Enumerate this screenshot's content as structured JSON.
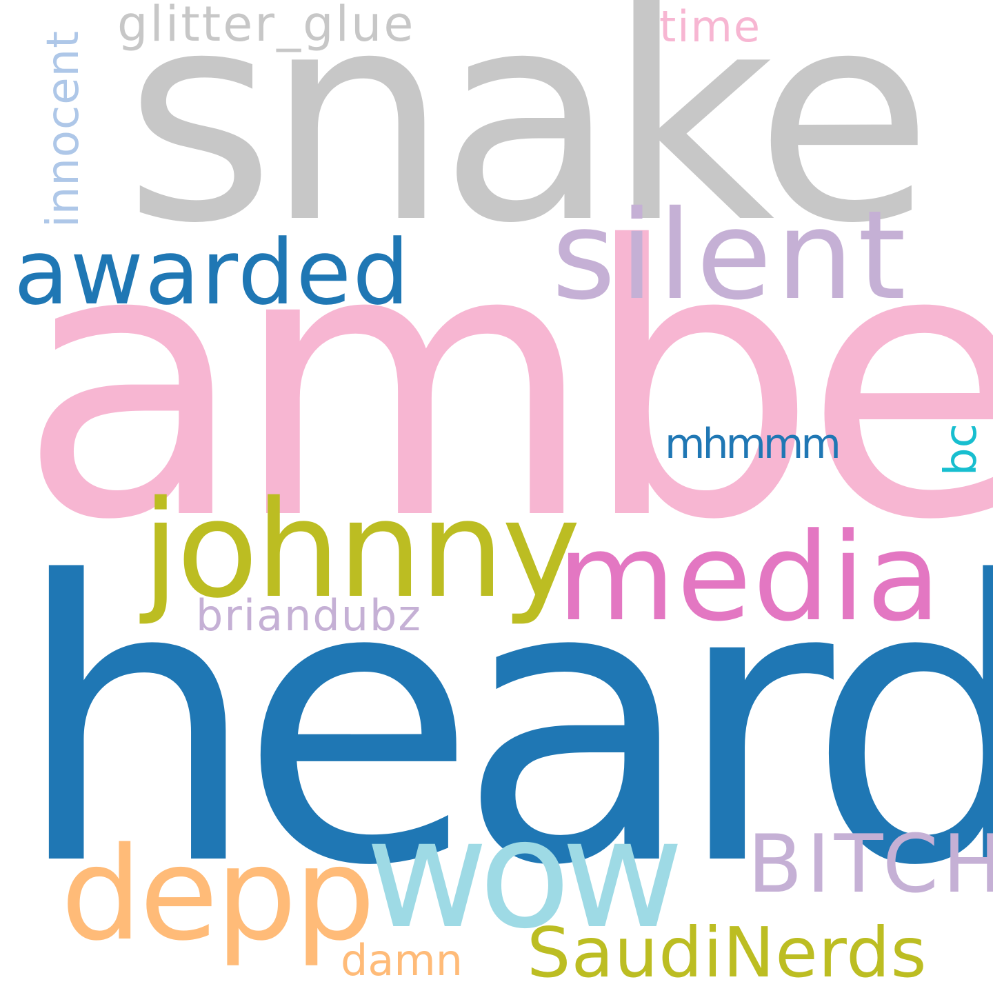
{
  "words": [
    {
      "text": "snake",
      "color": "#c7c7c7"
    },
    {
      "text": "amber",
      "color": "#f7b6d2"
    },
    {
      "text": "heard",
      "color": "#1f77b4"
    },
    {
      "text": "silent",
      "color": "#c5b0d5"
    },
    {
      "text": "awarded",
      "color": "#1f77b4"
    },
    {
      "text": "johnny",
      "color": "#bcbd22"
    },
    {
      "text": "media",
      "color": "#e377c2"
    },
    {
      "text": "wow",
      "color": "#9edae5"
    },
    {
      "text": "depp",
      "color": "#ffbb78"
    },
    {
      "text": "BITCH",
      "color": "#c5b0d5"
    },
    {
      "text": "SaudiNerds",
      "color": "#bcbd22"
    },
    {
      "text": "glitter_glue",
      "color": "#c7c7c7"
    },
    {
      "text": "time",
      "color": "#f7b6d2"
    },
    {
      "text": "innocent",
      "color": "#aec7e8"
    },
    {
      "text": "mhmmm",
      "color": "#1f77b4"
    },
    {
      "text": "bc",
      "color": "#17becf"
    },
    {
      "text": "briandubz",
      "color": "#c5b0d5"
    },
    {
      "text": "damn",
      "color": "#ffbb78"
    }
  ]
}
